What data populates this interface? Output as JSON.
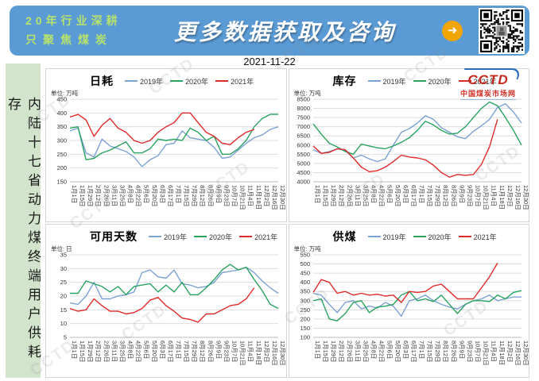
{
  "header": {
    "slogan_line1": "20年行业深耕",
    "slogan_line2": "只聚焦煤炭",
    "title": "更多数据获取及咨询",
    "arrow_icon": "➜"
  },
  "date": "2021-11-22",
  "sidebar": {
    "text": "内陆十七省动力煤终端用户供耗存"
  },
  "logo": {
    "name": "CCTD",
    "subtitle": "中国煤炭市场网"
  },
  "watermark": "CCTD",
  "colors": {
    "year2019": "#7CA1D4",
    "year2020": "#28A360",
    "year2021": "#E02A2A",
    "banner": "#5B9BD5",
    "slogan": "#B7E26B",
    "sidebar_bg": "#D3E4CD",
    "arrow_bg": "#F0A500",
    "grid": "#DDDDDD"
  },
  "chart_data": [
    {
      "type": "line",
      "title": "日耗",
      "unit_label": "单位: 万吨",
      "ylim": [
        150,
        450
      ],
      "ystep": 50,
      "grid": true,
      "legend_position": "top",
      "categories": [
        "1月1日",
        "1月15日",
        "1月29日",
        "2月12日",
        "2月26日",
        "3月11日",
        "3月25日",
        "4月8日",
        "4月22日",
        "5月6日",
        "5月20日",
        "6月3日",
        "6月17日",
        "7月1日",
        "7月15日",
        "7月29日",
        "8月12日",
        "8月26日",
        "9月9日",
        "9月23日",
        "10月7日",
        "10月21日",
        "11月4日",
        "11月18日",
        "12月2日",
        "12月16日",
        "12月30日"
      ],
      "series": [
        {
          "name": "2019年",
          "color": "#7CA1D4",
          "values": [
            335,
            345,
            255,
            240,
            305,
            280,
            270,
            260,
            240,
            205,
            230,
            245,
            285,
            290,
            335,
            310,
            305,
            300,
            275,
            235,
            240,
            265,
            290,
            310,
            320,
            340,
            350
          ]
        },
        {
          "name": "2020年",
          "color": "#28A360",
          "values": [
            345,
            350,
            230,
            235,
            255,
            265,
            280,
            295,
            255,
            255,
            270,
            305,
            300,
            305,
            300,
            345,
            330,
            300,
            315,
            250,
            250,
            270,
            300,
            350,
            380,
            395,
            395
          ]
        },
        {
          "name": "2021年",
          "color": "#E02A2A",
          "values": [
            385,
            395,
            375,
            315,
            355,
            380,
            345,
            330,
            300,
            290,
            300,
            330,
            350,
            365,
            400,
            400,
            365,
            330,
            315,
            290,
            285,
            310,
            330,
            340,
            null,
            null,
            null
          ]
        }
      ]
    },
    {
      "type": "line",
      "title": "库存",
      "unit_label": "单位: 万吨",
      "ylim": [
        4000,
        8500
      ],
      "ystep": 500,
      "grid": true,
      "legend_position": "top",
      "categories": [
        "1月1日",
        "1月15日",
        "1月29日",
        "2月12日",
        "2月26日",
        "3月11日",
        "3月25日",
        "4月8日",
        "4月22日",
        "5月6日",
        "5月20日",
        "6月3日",
        "6月17日",
        "7月1日",
        "7月15日",
        "7月29日",
        "8月12日",
        "8月26日",
        "9月9日",
        "9月23日",
        "10月7日",
        "10月21日",
        "11月4日",
        "11月18日",
        "12月2日",
        "12月16日",
        "12月30日"
      ],
      "series": [
        {
          "name": "2019年",
          "color": "#7CA1D4",
          "values": [
            5750,
            5550,
            5650,
            5800,
            5700,
            5300,
            5450,
            5250,
            5100,
            5250,
            6000,
            6700,
            6900,
            7200,
            7600,
            7400,
            6950,
            6700,
            6450,
            6350,
            6750,
            7050,
            7400,
            8050,
            8250,
            7800,
            7200
          ]
        },
        {
          "name": "2020年",
          "color": "#28A360",
          "values": [
            7150,
            6600,
            6100,
            5900,
            5650,
            5500,
            6050,
            5950,
            5850,
            5800,
            5950,
            6150,
            6400,
            6800,
            7300,
            7100,
            6800,
            6600,
            6650,
            7000,
            7500,
            8000,
            8350,
            8150,
            7500,
            6800,
            6000
          ]
        },
        {
          "name": "2021年",
          "color": "#E02A2A",
          "values": [
            5950,
            5550,
            5600,
            5800,
            5750,
            5300,
            4800,
            4550,
            4600,
            4800,
            5100,
            5450,
            5350,
            5300,
            5200,
            4900,
            4500,
            4250,
            4400,
            4350,
            4400,
            4950,
            5900,
            7400,
            null,
            null,
            null
          ]
        }
      ]
    },
    {
      "type": "line",
      "title": "可用天数",
      "unit_label": "单位: 日",
      "ylim": [
        5,
        35
      ],
      "ystep": 5,
      "grid": true,
      "legend_position": "top",
      "categories": [
        "1月1日",
        "1月15日",
        "1月29日",
        "2月12日",
        "2月26日",
        "3月11日",
        "3月25日",
        "4月8日",
        "4月22日",
        "5月6日",
        "5月20日",
        "6月3日",
        "6月17日",
        "7月1日",
        "7月15日",
        "7月29日",
        "8月12日",
        "8月26日",
        "9月9日",
        "9月23日",
        "10月7日",
        "10月21日",
        "11月4日",
        "11月18日",
        "12月2日",
        "12月16日",
        "12月30日"
      ],
      "series": [
        {
          "name": "2019年",
          "color": "#7CA1D4",
          "values": [
            17.5,
            17,
            20,
            25,
            19,
            19,
            20,
            20.5,
            21.5,
            28.5,
            29.5,
            27,
            26.5,
            29.5,
            24.5,
            24,
            23,
            23.5,
            25,
            28.5,
            29,
            29.5,
            30.5,
            28.5,
            25.5,
            23,
            21
          ]
        },
        {
          "name": "2020年",
          "color": "#28A360",
          "values": [
            21,
            21,
            25.5,
            24.5,
            23.5,
            21.5,
            23.5,
            20.5,
            23.5,
            24,
            24.5,
            21.5,
            24,
            21.5,
            25,
            20.5,
            20.5,
            23,
            26,
            29.5,
            31.5,
            29.5,
            30.5,
            26,
            22,
            17,
            15.5
          ]
        },
        {
          "name": "2021年",
          "color": "#E02A2A",
          "values": [
            15.5,
            14.5,
            15,
            19,
            16.5,
            14.5,
            14.5,
            13.5,
            14,
            15.5,
            18.5,
            19.5,
            16.5,
            14.5,
            12,
            11.5,
            10.5,
            13.5,
            13.5,
            15,
            16.5,
            17,
            19,
            23,
            null,
            null,
            null
          ]
        }
      ]
    },
    {
      "type": "line",
      "title": "供煤",
      "unit_label": "单位: 万吨",
      "ylim": [
        100,
        550
      ],
      "ystep": 50,
      "grid": true,
      "legend_position": "top",
      "categories": [
        "1月1日",
        "1月15日",
        "1月29日",
        "2月12日",
        "2月26日",
        "3月11日",
        "3月25日",
        "4月8日",
        "4月22日",
        "5月6日",
        "5月20日",
        "6月3日",
        "6月17日",
        "7月1日",
        "7月15日",
        "7月29日",
        "8月12日",
        "8月26日",
        "9月9日",
        "9月23日",
        "10月7日",
        "10月21日",
        "11月4日",
        "11月18日",
        "12月2日",
        "12月16日",
        "12月30日"
      ],
      "series": [
        {
          "name": "2019年",
          "color": "#7CA1D4",
          "values": [
            340,
            330,
            280,
            235,
            290,
            300,
            255,
            270,
            260,
            290,
            270,
            215,
            300,
            310,
            330,
            300,
            280,
            265,
            255,
            280,
            300,
            310,
            330,
            300,
            310,
            320,
            320
          ]
        },
        {
          "name": "2020年",
          "color": "#28A360",
          "values": [
            300,
            310,
            200,
            190,
            230,
            290,
            300,
            235,
            265,
            270,
            280,
            330,
            350,
            300,
            310,
            295,
            330,
            280,
            230,
            280,
            300,
            300,
            295,
            330,
            310,
            345,
            355
          ]
        },
        {
          "name": "2021年",
          "color": "#E02A2A",
          "values": [
            345,
            415,
            400,
            340,
            350,
            330,
            340,
            330,
            335,
            325,
            330,
            290,
            350,
            345,
            350,
            380,
            390,
            350,
            310,
            310,
            310,
            370,
            430,
            505,
            null,
            null,
            null
          ]
        }
      ]
    }
  ]
}
